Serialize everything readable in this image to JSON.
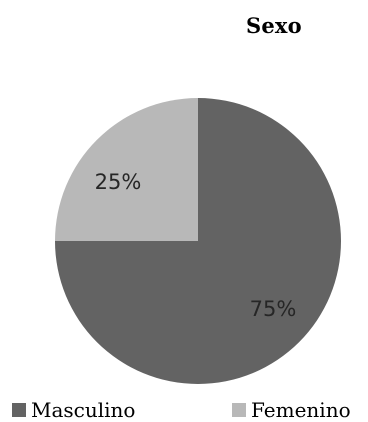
{
  "chart_data": {
    "type": "pie",
    "title": "Sexo",
    "categories": [
      "Masculino",
      "Femenino"
    ],
    "values": [
      75,
      25
    ],
    "labels": [
      "75%",
      "25%"
    ],
    "colors": [
      "#636363",
      "#b8b8b8"
    ],
    "legend_position": "bottom"
  }
}
